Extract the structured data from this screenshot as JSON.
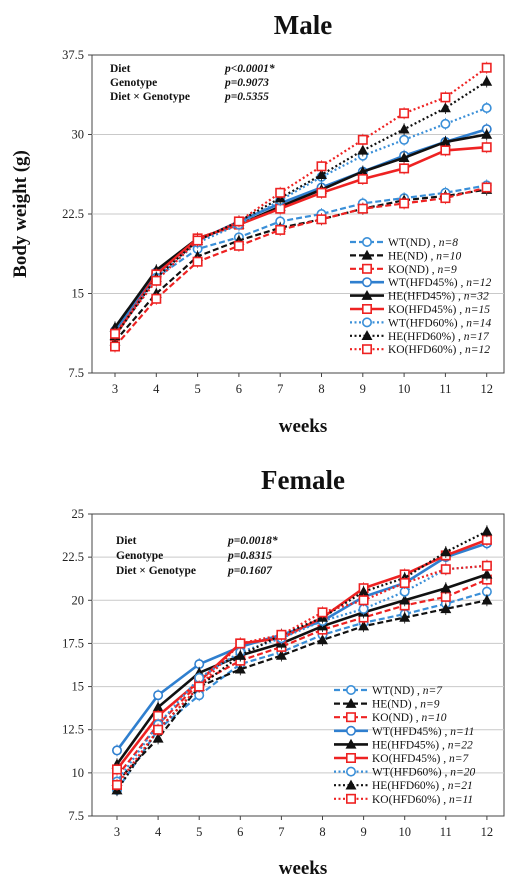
{
  "figure": {
    "weeks_label": "weeks",
    "body_weight_label": "Body weight (g)"
  },
  "chart_data": [
    {
      "type": "line",
      "title": "Male",
      "xlabel": "weeks",
      "ylabel": "Body weight (g)",
      "x": [
        3,
        4,
        5,
        6,
        7,
        8,
        9,
        10,
        11,
        12
      ],
      "ylim": [
        7.5,
        37.5
      ],
      "yticks": [
        "7.5",
        "15",
        "22.5",
        "30",
        "37.5"
      ],
      "stats": [
        {
          "label": "Diet",
          "p": "p<0.0001*"
        },
        {
          "label": "Genotype",
          "p": "p=0.9073"
        },
        {
          "label": "Diet × Genotype",
          "p": "p=0.5355"
        }
      ],
      "legend_position": "lower-right",
      "series": [
        {
          "name": "WT(ND), n=8",
          "legend": "WT(ND)",
          "n": "n=8",
          "color": "#3a8fd8",
          "dash": "dashed",
          "marker": "circle-open",
          "values": [
            11.0,
            16.5,
            19.2,
            20.3,
            21.8,
            22.5,
            23.5,
            24.0,
            24.5,
            25.2
          ]
        },
        {
          "name": "HE(ND), n=10",
          "legend": "HE(ND)",
          "n": "n=10",
          "color": "#111111",
          "dash": "dashed",
          "marker": "triangle",
          "values": [
            10.5,
            15.0,
            18.5,
            20.0,
            21.2,
            22.0,
            23.0,
            23.8,
            24.2,
            24.8
          ]
        },
        {
          "name": "KO(ND), n=9",
          "legend": "KO(ND)",
          "n": "n=9",
          "color": "#ee2222",
          "dash": "dashed",
          "marker": "square-open",
          "values": [
            10.0,
            14.5,
            18.0,
            19.5,
            21.0,
            22.0,
            23.0,
            23.5,
            24.0,
            25.0
          ]
        },
        {
          "name": "WT(HFD45%), n=12",
          "legend": "WT(HFD45%)",
          "n": "n=12",
          "color": "#2f7fcf",
          "dash": "solid",
          "marker": "circle-open",
          "values": [
            11.5,
            17.0,
            20.0,
            21.8,
            23.5,
            25.0,
            26.5,
            28.0,
            29.3,
            30.5
          ]
        },
        {
          "name": "HE(HFD45%), n=32",
          "legend": "HE(HFD45%)",
          "n": "n=32",
          "color": "#111111",
          "dash": "solid",
          "marker": "triangle",
          "values": [
            11.8,
            17.2,
            20.2,
            21.5,
            23.2,
            24.8,
            26.5,
            27.8,
            29.3,
            30.0
          ]
        },
        {
          "name": "KO(HFD45%), n=15",
          "legend": "KO(HFD45%)",
          "n": "n=15",
          "color": "#ee2222",
          "dash": "solid",
          "marker": "square-open",
          "values": [
            11.0,
            16.8,
            20.2,
            21.5,
            23.0,
            24.5,
            25.8,
            26.8,
            28.5,
            28.8
          ]
        },
        {
          "name": "WT(HFD60%), n=14",
          "legend": "WT(HFD60%)",
          "n": "n=14",
          "color": "#3a8fd8",
          "dash": "dotted",
          "marker": "circle-open",
          "values": [
            11.2,
            16.5,
            19.8,
            21.5,
            23.8,
            26.0,
            28.0,
            29.5,
            31.0,
            32.5
          ]
        },
        {
          "name": "HE(HFD60%), n=17",
          "legend": "HE(HFD60%)",
          "n": "n=17",
          "color": "#111111",
          "dash": "dotted",
          "marker": "triangle",
          "values": [
            11.0,
            16.5,
            20.0,
            21.8,
            24.0,
            26.2,
            28.5,
            30.5,
            32.5,
            35.0
          ]
        },
        {
          "name": "KO(HFD60%), n=12",
          "legend": "KO(HFD60%)",
          "n": "n=12",
          "color": "#ee2222",
          "dash": "dotted",
          "marker": "square-open",
          "values": [
            11.2,
            16.2,
            20.0,
            21.8,
            24.5,
            27.0,
            29.5,
            32.0,
            33.5,
            36.3
          ]
        }
      ]
    },
    {
      "type": "line",
      "title": "Female",
      "xlabel": "weeks",
      "ylabel": "",
      "x": [
        3,
        4,
        5,
        6,
        7,
        8,
        9,
        10,
        11,
        12
      ],
      "ylim": [
        7.5,
        25
      ],
      "yticks": [
        "7.5",
        "10",
        "12.5",
        "15",
        "17.5",
        "20",
        "22.5",
        "25"
      ],
      "stats": [
        {
          "label": "Diet",
          "p": "p=0.0018*"
        },
        {
          "label": "Genotype",
          "p": "p=0.8315"
        },
        {
          "label": "Diet × Genotype",
          "p": "p=0.1607"
        }
      ],
      "legend_position": "lower-right",
      "series": [
        {
          "name": "WT(ND), n=7",
          "legend": "WT(ND)",
          "n": "n=7",
          "color": "#3a8fd8",
          "dash": "dashed",
          "marker": "circle-open",
          "values": [
            9.0,
            12.5,
            14.5,
            16.3,
            17.0,
            18.0,
            18.7,
            19.2,
            19.8,
            20.5
          ]
        },
        {
          "name": "HE(ND), n=9",
          "legend": "HE(ND)",
          "n": "n=9",
          "color": "#111111",
          "dash": "dashed",
          "marker": "triangle",
          "values": [
            9.5,
            12.0,
            15.0,
            16.0,
            16.8,
            17.7,
            18.5,
            19.0,
            19.5,
            20.0
          ]
        },
        {
          "name": "KO(ND), n=10",
          "legend": "KO(ND)",
          "n": "n=10",
          "color": "#ee2222",
          "dash": "dashed",
          "marker": "square-open",
          "values": [
            9.8,
            12.8,
            15.2,
            16.5,
            17.3,
            18.3,
            19.0,
            19.7,
            20.2,
            21.2
          ]
        },
        {
          "name": "WT(HFD45%), n=11",
          "legend": "WT(HFD45%)",
          "n": "n=11",
          "color": "#2f7fcf",
          "dash": "solid",
          "marker": "circle-open",
          "values": [
            11.3,
            14.5,
            16.3,
            17.3,
            18.0,
            18.8,
            20.2,
            21.0,
            22.5,
            23.3
          ]
        },
        {
          "name": "HE(HFD45%), n=22",
          "legend": "HE(HFD45%)",
          "n": "n=22",
          "color": "#111111",
          "dash": "solid",
          "marker": "triangle",
          "values": [
            10.5,
            13.8,
            15.8,
            16.8,
            17.5,
            18.5,
            19.3,
            20.0,
            20.7,
            21.5
          ]
        },
        {
          "name": "KO(HFD45%), n=7",
          "legend": "KO(HFD45%)",
          "n": "n=7",
          "color": "#ee2222",
          "dash": "solid",
          "marker": "square-open",
          "values": [
            10.2,
            13.3,
            15.3,
            17.5,
            17.8,
            19.0,
            20.7,
            21.5,
            22.6,
            23.5
          ]
        },
        {
          "name": "WT(HFD60%), n=20",
          "legend": "WT(HFD60%)",
          "n": "n=20",
          "color": "#3a8fd8",
          "dash": "dotted",
          "marker": "circle-open",
          "values": [
            9.5,
            12.8,
            15.5,
            17.0,
            17.8,
            18.8,
            19.5,
            20.5,
            21.8,
            22.0
          ]
        },
        {
          "name": "HE(HFD60%), n=21",
          "legend": "HE(HFD60%)",
          "n": "n=21",
          "color": "#111111",
          "dash": "dotted",
          "marker": "triangle",
          "values": [
            9.0,
            12.5,
            15.0,
            16.8,
            18.0,
            19.0,
            20.5,
            21.3,
            22.8,
            24.0
          ]
        },
        {
          "name": "KO(HFD60%), n=11",
          "legend": "KO(HFD60%)",
          "n": "n=11",
          "color": "#ee2222",
          "dash": "dotted",
          "marker": "square-open",
          "values": [
            9.3,
            12.5,
            15.0,
            17.5,
            18.0,
            19.3,
            20.0,
            21.0,
            21.8,
            22.0
          ]
        }
      ]
    }
  ]
}
